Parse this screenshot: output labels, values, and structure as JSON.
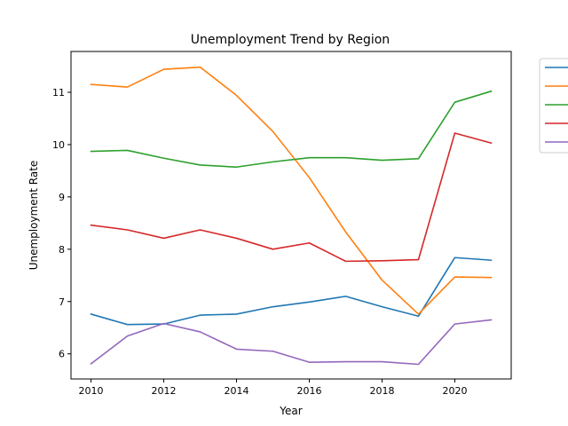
{
  "chart_data": {
    "type": "line",
    "title": "Unemployment Trend by Region",
    "xlabel": "Year",
    "ylabel": "Unemployment Rate",
    "x": [
      2010,
      2011,
      2012,
      2013,
      2014,
      2015,
      2016,
      2017,
      2018,
      2019,
      2020,
      2021
    ],
    "xlim": [
      2009.45,
      2021.55
    ],
    "ylim": [
      5.52,
      11.78
    ],
    "xticks": [
      2010,
      2012,
      2014,
      2016,
      2018,
      2020
    ],
    "yticks": [
      6,
      7,
      8,
      9,
      10,
      11
    ],
    "grid": false,
    "legend_position": "outside-top-right",
    "series": [
      {
        "color": "#1f77b4",
        "values": [
          6.76,
          6.56,
          6.57,
          6.74,
          6.76,
          6.9,
          6.99,
          7.1,
          6.9,
          6.72,
          7.84,
          7.79
        ]
      },
      {
        "color": "#ff7f0e",
        "values": [
          11.15,
          11.1,
          11.44,
          11.48,
          10.94,
          10.25,
          9.37,
          8.33,
          7.41,
          6.76,
          7.47,
          7.46
        ]
      },
      {
        "color": "#2ca02c",
        "values": [
          9.87,
          9.89,
          9.74,
          9.61,
          9.57,
          9.67,
          9.75,
          9.75,
          9.7,
          9.73,
          10.81,
          11.02
        ]
      },
      {
        "color": "#d62728",
        "values": [
          8.46,
          8.37,
          8.21,
          8.37,
          8.21,
          8.0,
          8.12,
          7.77,
          7.78,
          7.8,
          10.22,
          10.03
        ]
      },
      {
        "color": "#9467bd",
        "values": [
          5.81,
          6.34,
          6.58,
          6.42,
          6.09,
          6.05,
          5.84,
          5.85,
          5.85,
          5.8,
          6.57,
          6.65
        ]
      }
    ]
  }
}
